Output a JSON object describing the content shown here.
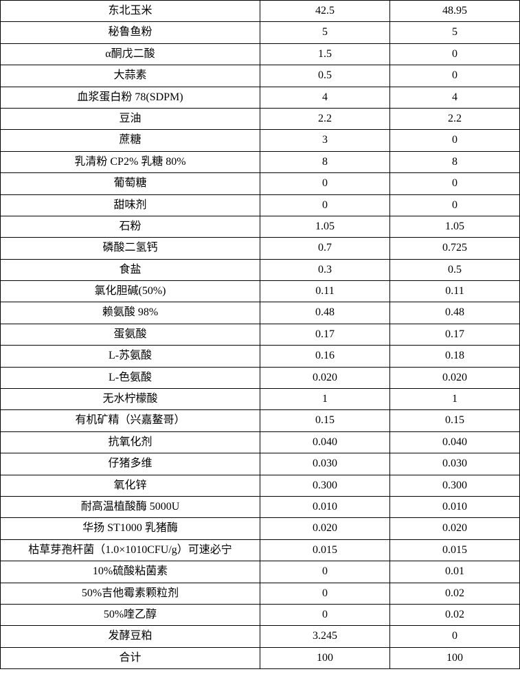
{
  "table": {
    "type": "table",
    "columns": [
      "ingredient",
      "value1",
      "value2"
    ],
    "column_widths": [
      "50%",
      "25%",
      "25%"
    ],
    "border_color": "#000000",
    "background_color": "#ffffff",
    "text_color": "#000000",
    "font_family": "SimSun",
    "font_size": 16,
    "text_align": "center",
    "rows": [
      {
        "name": "东北玉米",
        "v1": "42.5",
        "v2": "48.95"
      },
      {
        "name": "秘鲁鱼粉",
        "v1": "5",
        "v2": "5"
      },
      {
        "name": "α酮戊二酸",
        "v1": "1.5",
        "v2": "0"
      },
      {
        "name": "大蒜素",
        "v1": "0.5",
        "v2": "0"
      },
      {
        "name": "血浆蛋白粉 78(SDPM)",
        "v1": "4",
        "v2": "4"
      },
      {
        "name": "豆油",
        "v1": "2.2",
        "v2": "2.2"
      },
      {
        "name": "蔗糖",
        "v1": "3",
        "v2": "0"
      },
      {
        "name": "乳清粉 CP2% 乳糖 80%",
        "v1": "8",
        "v2": "8"
      },
      {
        "name": "葡萄糖",
        "v1": "0",
        "v2": "0"
      },
      {
        "name": "甜味剂",
        "v1": "0",
        "v2": "0"
      },
      {
        "name": "石粉",
        "v1": "1.05",
        "v2": "1.05"
      },
      {
        "name": "磷酸二氢钙",
        "v1": "0.7",
        "v2": "0.725"
      },
      {
        "name": "食盐",
        "v1": "0.3",
        "v2": "0.5"
      },
      {
        "name": "氯化胆碱(50%)",
        "v1": "0.11",
        "v2": "0.11"
      },
      {
        "name": "赖氨酸 98%",
        "v1": "0.48",
        "v2": "0.48"
      },
      {
        "name": "蛋氨酸",
        "v1": "0.17",
        "v2": "0.17"
      },
      {
        "name": "L-苏氨酸",
        "v1": "0.16",
        "v2": "0.18"
      },
      {
        "name": "L-色氨酸",
        "v1": "0.020",
        "v2": "0.020"
      },
      {
        "name": "无水柠檬酸",
        "v1": "1",
        "v2": "1"
      },
      {
        "name": "有机矿精（兴嘉鳌哥）",
        "v1": "0.15",
        "v2": "0.15"
      },
      {
        "name": "抗氧化剂",
        "v1": "0.040",
        "v2": "0.040"
      },
      {
        "name": "仔猪多维",
        "v1": "0.030",
        "v2": "0.030"
      },
      {
        "name": "氧化锌",
        "v1": "0.300",
        "v2": "0.300"
      },
      {
        "name": "耐高温植酸酶 5000U",
        "v1": "0.010",
        "v2": "0.010"
      },
      {
        "name": "华扬 ST1000 乳猪酶",
        "v1": "0.020",
        "v2": "0.020"
      },
      {
        "name": "枯草芽孢杆菌（1.0×1010CFU/g）可速必宁",
        "v1": "0.015",
        "v2": "0.015"
      },
      {
        "name": "10%硫酸粘菌素",
        "v1": "0",
        "v2": "0.01"
      },
      {
        "name": "50%吉他霉素颗粒剂",
        "v1": "0",
        "v2": "0.02"
      },
      {
        "name": "50%喹乙醇",
        "v1": "0",
        "v2": "0.02"
      },
      {
        "name": "发酵豆粕",
        "v1": "3.245",
        "v2": "0"
      },
      {
        "name": "合计",
        "v1": "100",
        "v2": "100"
      }
    ]
  }
}
